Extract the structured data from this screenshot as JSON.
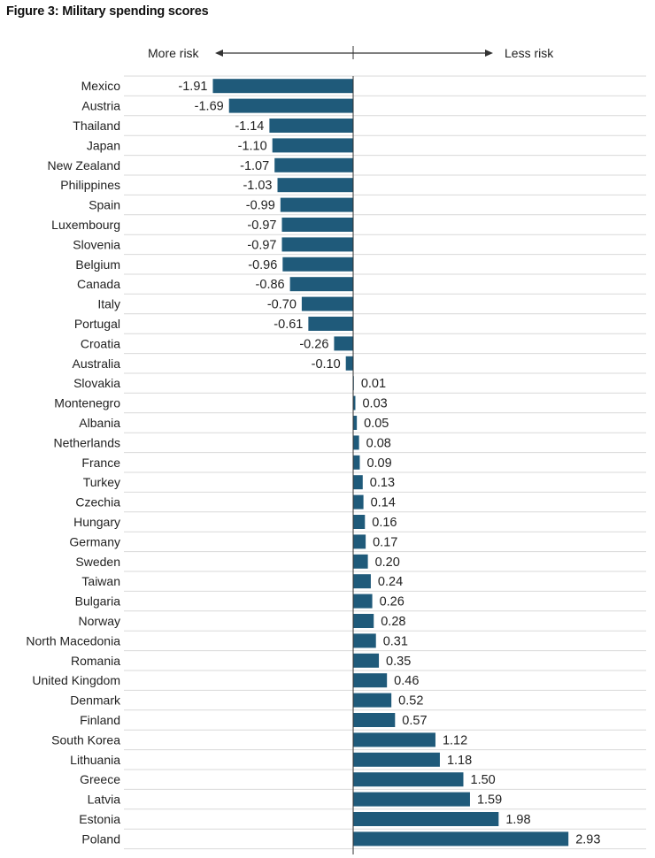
{
  "figure_title": "Figure 3: Military spending scores",
  "chart_data": {
    "type": "bar",
    "orientation": "horizontal",
    "title": "Military spending scores",
    "xlabel": "",
    "ylabel": "",
    "annotations": {
      "left": "More risk",
      "right": "Less risk"
    },
    "bar_color": "#1f5a7a",
    "gridlines": true,
    "categories": [
      "Mexico",
      "Austria",
      "Thailand",
      "Japan",
      "New Zealand",
      "Philippines",
      "Spain",
      "Luxembourg",
      "Slovenia",
      "Belgium",
      "Canada",
      "Italy",
      "Portugal",
      "Croatia",
      "Australia",
      "Slovakia",
      "Montenegro",
      "Albania",
      "Netherlands",
      "France",
      "Turkey",
      "Czechia",
      "Hungary",
      "Germany",
      "Sweden",
      "Taiwan",
      "Bulgaria",
      "Norway",
      "North Macedonia",
      "Romania",
      "United Kingdom",
      "Denmark",
      "Finland",
      "South Korea",
      "Lithuania",
      "Greece",
      "Latvia",
      "Estonia",
      "Poland"
    ],
    "values": [
      -1.91,
      -1.69,
      -1.14,
      -1.1,
      -1.07,
      -1.03,
      -0.99,
      -0.97,
      -0.97,
      -0.96,
      -0.86,
      -0.7,
      -0.61,
      -0.26,
      -0.1,
      0.01,
      0.03,
      0.05,
      0.08,
      0.09,
      0.13,
      0.14,
      0.16,
      0.17,
      0.2,
      0.24,
      0.26,
      0.28,
      0.31,
      0.35,
      0.46,
      0.52,
      0.57,
      1.12,
      1.18,
      1.5,
      1.59,
      1.98,
      2.93
    ],
    "value_labels": [
      "-1.91",
      "-1.69",
      "-1.14",
      "-1.10",
      "-1.07",
      "-1.03",
      "-0.99",
      "-0.97",
      "-0.97",
      "-0.96",
      "-0.86",
      "-0.70",
      "-0.61",
      "-0.26",
      "-0.10",
      "0.01",
      "0.03",
      "0.05",
      "0.08",
      "0.09",
      "0.13",
      "0.14",
      "0.16",
      "0.17",
      "0.20",
      "0.24",
      "0.26",
      "0.28",
      "0.31",
      "0.35",
      "0.46",
      "0.52",
      "0.57",
      "1.12",
      "1.18",
      "1.50",
      "1.59",
      "1.98",
      "2.93"
    ]
  }
}
